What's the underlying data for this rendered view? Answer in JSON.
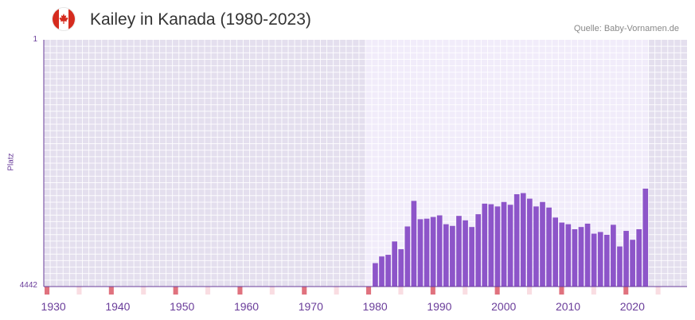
{
  "header": {
    "title": "Kailey in Kanada (1980-2023)",
    "source": "Quelle: Baby-Vornamen.de",
    "flag_icon": "canada-flag-icon"
  },
  "colors": {
    "bar": "#8d55c9",
    "axis": "#6a3d9a",
    "tick_label": "#6a3d9a",
    "bg_dark": "#e4dfee",
    "bg_light": "#f1ecfa",
    "grid": "#ffffff",
    "strip_strong": "#e0727e",
    "strip_weak": "#f9dde2"
  },
  "chart_data": {
    "type": "bar",
    "title": "Kailey in Kanada (1980-2023)",
    "xlabel": "",
    "ylabel": "Platz",
    "y_inverted": true,
    "ylim": [
      1,
      4442
    ],
    "y_tick_labels": [
      "1",
      "4442"
    ],
    "xlim": [
      1929,
      2029
    ],
    "x_ticks": [
      1930,
      1940,
      1950,
      1960,
      1970,
      1980,
      1990,
      2000,
      2010,
      2020
    ],
    "highlight_range": [
      1979,
      2023
    ],
    "years": [
      1980,
      1981,
      1982,
      1983,
      1984,
      1985,
      1986,
      1987,
      1988,
      1989,
      1990,
      1991,
      1992,
      1993,
      1994,
      1995,
      1996,
      1997,
      1998,
      1999,
      2000,
      2001,
      2002,
      2003,
      2004,
      2005,
      2006,
      2007,
      2008,
      2009,
      2010,
      2011,
      2012,
      2013,
      2014,
      2015,
      2016,
      2017,
      2018,
      2019,
      2020,
      2021,
      2022
    ],
    "ranks": [
      4020,
      3900,
      3870,
      3630,
      3770,
      3360,
      2900,
      3230,
      3220,
      3190,
      3160,
      3320,
      3350,
      3170,
      3250,
      3370,
      3140,
      2950,
      2960,
      3000,
      2920,
      2970,
      2780,
      2760,
      2860,
      3000,
      2920,
      3020,
      3200,
      3290,
      3320,
      3410,
      3370,
      3310,
      3490,
      3460,
      3510,
      3330,
      3720,
      3440,
      3600,
      3410,
      2680
    ]
  }
}
